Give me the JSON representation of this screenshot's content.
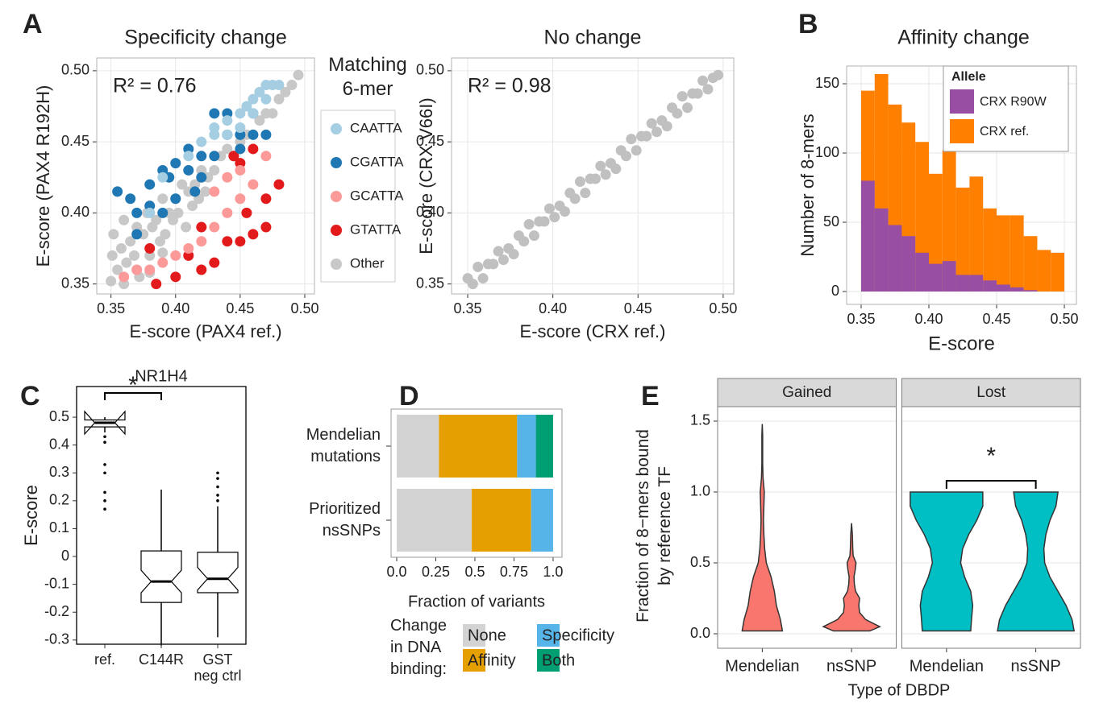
{
  "chart_data": [
    {
      "type": "scatter",
      "panel": "A",
      "title": "Specificity change",
      "xlabel": "E-score (PAX4 ref.)",
      "ylabel": "E-score (PAX4 R192H)",
      "annotation": "R² = 0.76",
      "xlim": [
        0.339,
        0.5075
      ],
      "ylim": [
        0.343,
        0.509
      ],
      "xticks": [
        0.35,
        {
          "value": 0.4,
          "label": "0.40"
        },
        0.45,
        {
          "value": 0.5,
          "label": "0.50"
        }
      ],
      "yticks": [
        0.35,
        {
          "value": 0.4,
          "label": "0.40"
        },
        0.45,
        {
          "value": 0.5,
          "label": "0.50"
        }
      ],
      "grid": true,
      "legend_title": "Matching\n6-mer",
      "series": [
        {
          "name": "CAATTA",
          "color": "#a6cee3",
          "x": [
            0.43,
            0.44,
            0.45,
            0.455,
            0.46,
            0.465,
            0.47,
            0.475,
            0.48,
            0.44,
            0.42,
            0.41,
            0.43,
            0.45,
            0.39,
            0.47,
            0.46,
            0.38
          ],
          "y": [
            0.46,
            0.465,
            0.47,
            0.475,
            0.48,
            0.485,
            0.49,
            0.49,
            0.49,
            0.455,
            0.45,
            0.44,
            0.455,
            0.46,
            0.425,
            0.48,
            0.47,
            0.4
          ]
        },
        {
          "name": "CGATTA",
          "color": "#1f78b4",
          "x": [
            0.355,
            0.365,
            0.37,
            0.38,
            0.38,
            0.39,
            0.4,
            0.395,
            0.41,
            0.42,
            0.43,
            0.42,
            0.41,
            0.44,
            0.45,
            0.46,
            0.44,
            0.43,
            0.45,
            0.415,
            0.4,
            0.39,
            0.37,
            0.47,
            0.46
          ],
          "y": [
            0.415,
            0.41,
            0.4,
            0.405,
            0.42,
            0.43,
            0.435,
            0.425,
            0.445,
            0.44,
            0.44,
            0.425,
            0.43,
            0.455,
            0.455,
            0.47,
            0.47,
            0.47,
            0.445,
            0.415,
            0.41,
            0.4,
            0.385,
            0.455,
            0.455
          ]
        },
        {
          "name": "GCATTA",
          "color": "#fb9a99",
          "x": [
            0.37,
            0.38,
            0.41,
            0.42,
            0.43,
            0.44,
            0.45,
            0.45,
            0.46,
            0.43,
            0.47,
            0.4,
            0.39,
            0.44,
            0.36
          ],
          "y": [
            0.36,
            0.36,
            0.375,
            0.38,
            0.39,
            0.4,
            0.41,
            0.43,
            0.42,
            0.415,
            0.44,
            0.37,
            0.365,
            0.425,
            0.355
          ]
        },
        {
          "name": "GTATTA",
          "color": "#e31a1c",
          "x": [
            0.385,
            0.4,
            0.38,
            0.41,
            0.42,
            0.43,
            0.44,
            0.45,
            0.46,
            0.47,
            0.455,
            0.47,
            0.48,
            0.45,
            0.46,
            0.445,
            0.42
          ],
          "y": [
            0.35,
            0.355,
            0.375,
            0.37,
            0.36,
            0.365,
            0.38,
            0.38,
            0.385,
            0.39,
            0.4,
            0.41,
            0.42,
            0.435,
            0.445,
            0.44,
            0.39
          ]
        },
        {
          "name": "Other",
          "color": "#c8c8c8",
          "x": [
            0.35,
            0.351,
            0.352,
            0.355,
            0.358,
            0.36,
            0.362,
            0.365,
            0.368,
            0.37,
            0.372,
            0.375,
            0.378,
            0.38,
            0.382,
            0.385,
            0.388,
            0.39,
            0.392,
            0.395,
            0.398,
            0.4,
            0.402,
            0.405,
            0.408,
            0.41,
            0.413,
            0.415,
            0.418,
            0.42,
            0.423,
            0.425,
            0.43,
            0.435,
            0.44,
            0.445,
            0.45,
            0.455,
            0.46,
            0.465,
            0.47,
            0.475,
            0.48,
            0.485,
            0.49,
            0.495,
            0.36,
            0.37,
            0.38,
            0.39
          ],
          "y": [
            0.352,
            0.37,
            0.385,
            0.36,
            0.375,
            0.395,
            0.365,
            0.38,
            0.37,
            0.39,
            0.355,
            0.385,
            0.4,
            0.37,
            0.39,
            0.395,
            0.38,
            0.41,
            0.385,
            0.4,
            0.395,
            0.41,
            0.4,
            0.42,
            0.39,
            0.415,
            0.405,
            0.42,
            0.41,
            0.43,
            0.415,
            0.425,
            0.43,
            0.44,
            0.445,
            0.44,
            0.45,
            0.455,
            0.455,
            0.465,
            0.47,
            0.47,
            0.48,
            0.485,
            0.49,
            0.497,
            0.35,
            0.36,
            0.358,
            0.372
          ]
        }
      ]
    },
    {
      "type": "scatter",
      "title": "No change",
      "xlabel": "E-score (CRX ref.)",
      "ylabel": "E-score (CRX V66I)",
      "annotation": "R² = 0.98",
      "xlim": [
        0.3405,
        0.5062
      ],
      "ylim": [
        0.343,
        0.509
      ],
      "xticks": [
        0.35,
        {
          "value": 0.4,
          "label": "0.40"
        },
        0.45,
        {
          "value": 0.5,
          "label": "0.50"
        }
      ],
      "yticks": [
        0.35,
        {
          "value": 0.4,
          "label": "0.40"
        },
        0.45,
        {
          "value": 0.5,
          "label": "0.50"
        }
      ],
      "grid": true,
      "series": [
        {
          "color": "#c0c0c0",
          "x": [
            0.35,
            0.353,
            0.356,
            0.359,
            0.362,
            0.365,
            0.368,
            0.371,
            0.374,
            0.377,
            0.38,
            0.383,
            0.386,
            0.389,
            0.392,
            0.395,
            0.398,
            0.401,
            0.404,
            0.407,
            0.41,
            0.413,
            0.416,
            0.419,
            0.422,
            0.425,
            0.428,
            0.431,
            0.434,
            0.437,
            0.44,
            0.443,
            0.446,
            0.449,
            0.452,
            0.455,
            0.458,
            0.461,
            0.464,
            0.467,
            0.47,
            0.473,
            0.476,
            0.479,
            0.482,
            0.485,
            0.488,
            0.491,
            0.494,
            0.497
          ],
          "y": [
            0.354,
            0.35,
            0.362,
            0.354,
            0.364,
            0.364,
            0.373,
            0.367,
            0.375,
            0.371,
            0.384,
            0.38,
            0.392,
            0.384,
            0.394,
            0.394,
            0.403,
            0.397,
            0.405,
            0.401,
            0.414,
            0.41,
            0.422,
            0.414,
            0.424,
            0.424,
            0.433,
            0.427,
            0.435,
            0.431,
            0.444,
            0.44,
            0.452,
            0.444,
            0.454,
            0.454,
            0.463,
            0.457,
            0.465,
            0.461,
            0.474,
            0.47,
            0.482,
            0.474,
            0.484,
            0.484,
            0.493,
            0.487,
            0.495,
            0.497
          ]
        }
      ]
    },
    {
      "type": "histogram",
      "panel": "B",
      "title": "Affinity change",
      "xlabel": "E-score",
      "ylabel": "Number of 8-mers",
      "bins": [
        0.35,
        0.36,
        0.37,
        0.38,
        0.39,
        0.4,
        0.41,
        0.42,
        0.43,
        0.44,
        0.45,
        0.46,
        0.47,
        0.48,
        0.49,
        0.5
      ],
      "xlim": [
        0.3393,
        0.5089
      ],
      "ylim": [
        -9.3,
        162.8
      ],
      "xticks": [
        0.35,
        {
          "value": 0.4,
          "label": "0.40"
        },
        0.45,
        {
          "value": 0.5,
          "label": "0.50"
        }
      ],
      "yticks": [
        0,
        50,
        100,
        150
      ],
      "grid": true,
      "legend_title": "Allele",
      "series": [
        {
          "name": "CRX R90W",
          "color": "#984ea3",
          "values": [
            80,
            60,
            48,
            40,
            28,
            20,
            22,
            12,
            12,
            8,
            5,
            3,
            1,
            0,
            0
          ]
        },
        {
          "name": "CRX ref.",
          "color": "#ff7f00",
          "values": [
            145,
            157,
            135,
            122,
            108,
            85,
            102,
            75,
            83,
            60,
            55,
            55,
            40,
            30,
            28
          ]
        }
      ]
    },
    {
      "type": "box",
      "panel": "C",
      "title": "NR1H4",
      "ylabel": "E-score",
      "annotation": "*",
      "categories": [
        "ref.",
        "C144R",
        "GST\nneg ctrl"
      ],
      "ylim": [
        -0.315,
        0.61
      ],
      "yticks": [
        -0.3,
        -0.2,
        -0.1,
        0,
        0.1,
        0.2,
        0.3,
        0.4,
        0.5
      ],
      "boxes": [
        {
          "q1": 0.465,
          "median": 0.48,
          "q3": 0.49,
          "whislo": 0.445,
          "whishi": 0.5,
          "fliers": [
            0.43,
            0.41,
            0.33,
            0.3,
            0.23,
            0.2,
            0.17
          ]
        },
        {
          "q1": -0.165,
          "median": -0.09,
          "q3": 0.02,
          "whislo": -0.32,
          "whishi": 0.24,
          "fliers": []
        },
        {
          "q1": -0.13,
          "median": -0.08,
          "q3": 0.015,
          "whislo": -0.29,
          "whishi": 0.18,
          "fliers": [
            0.2,
            0.22,
            0.25,
            0.28,
            0.3
          ]
        }
      ]
    },
    {
      "type": "stacked_barh",
      "panel": "D",
      "xlabel": "Fraction of variants",
      "legend_title": "Change\nin DNA\nbinding:",
      "categories": [
        "Mendelian\nmutations",
        "Prioritized\nnsSNPs"
      ],
      "xlim": [
        -0.036,
        1.057
      ],
      "xticks": [
        {
          "value": 0,
          "label": "0.0"
        },
        0.25,
        {
          "value": 0.5,
          "label": "0.5"
        },
        0.75,
        {
          "value": 1,
          "label": "1.0"
        }
      ],
      "series": [
        {
          "name": "None",
          "color": "#d3d3d3",
          "values": [
            0.27,
            0.48
          ]
        },
        {
          "name": "Affinity",
          "color": "#e69f00",
          "values": [
            0.5,
            0.38
          ]
        },
        {
          "name": "Specificity",
          "color": "#56b4e9",
          "values": [
            0.12,
            0.14
          ]
        },
        {
          "name": "Both",
          "color": "#009e73",
          "values": [
            0.11,
            0
          ]
        }
      ]
    },
    {
      "type": "violin",
      "panel": "E",
      "ylabel": "Fraction of 8−mers bound\nby reference TF",
      "xlabel": "Type of DBDP",
      "annotation": "*",
      "facets": [
        "Gained",
        "Lost"
      ],
      "categories": [
        "Mendelian",
        "nsSNP"
      ],
      "colors": [
        "#f8766d",
        "#00bfc4"
      ],
      "ylim": [
        -0.102,
        1.602
      ],
      "yticks": [
        {
          "value": 0,
          "label": "0.0"
        },
        0.5,
        {
          "value": 1,
          "label": "1.0"
        },
        1.5
      ],
      "grid": true,
      "violins": [
        [
          {
            "y": [
              0.02,
              0.1,
              0.2,
              0.3,
              0.4,
              0.5,
              0.6,
              0.7,
              0.8,
              0.9,
              1.0,
              1.1,
              1.2,
              1.3,
              1.4,
              1.48
            ],
            "density": [
              0.5,
              0.45,
              0.35,
              0.3,
              0.22,
              0.1,
              0.06,
              0.04,
              0.03,
              0.04,
              0.05,
              0.02,
              0.01,
              0.01,
              0.01,
              0
            ]
          },
          {
            "y": [
              0.02,
              0.05,
              0.1,
              0.15,
              0.2,
              0.25,
              0.3,
              0.35,
              0.4,
              0.45,
              0.5,
              0.55,
              0.6,
              0.7,
              0.78
            ],
            "density": [
              0.45,
              0.7,
              0.35,
              0.2,
              0.18,
              0.2,
              0.1,
              0.07,
              0.06,
              0.09,
              0.11,
              0.04,
              0.03,
              0.02,
              0
            ]
          }
        ],
        [
          {
            "y": [
              0.02,
              0.1,
              0.2,
              0.3,
              0.4,
              0.5,
              0.6,
              0.7,
              0.8,
              0.9,
              1.0
            ],
            "density": [
              0.6,
              0.62,
              0.65,
              0.6,
              0.45,
              0.35,
              0.4,
              0.55,
              0.75,
              0.9,
              0.9
            ]
          },
          {
            "y": [
              0.02,
              0.1,
              0.2,
              0.3,
              0.4,
              0.5,
              0.6,
              0.7,
              0.8,
              0.9,
              1.0
            ],
            "density": [
              0.95,
              0.9,
              0.75,
              0.55,
              0.35,
              0.22,
              0.2,
              0.25,
              0.35,
              0.5,
              0.55
            ]
          }
        ]
      ]
    }
  ]
}
